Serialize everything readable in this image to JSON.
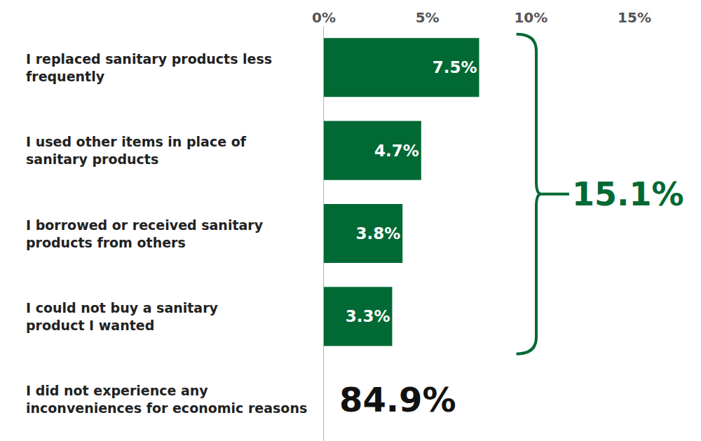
{
  "chart_data": {
    "type": "bar",
    "orientation": "horizontal",
    "categories": [
      "I replaced sanitary products less\nfrequently",
      "I used other items in place of\nsanitary products",
      "I borrowed or received sanitary\nproducts from others",
      "I could not buy a sanitary\nproduct I wanted",
      "I did not experience any\ninconveniences for economic reasons"
    ],
    "values": [
      7.5,
      4.7,
      3.8,
      3.3,
      null
    ],
    "value_labels": [
      "7.5%",
      "4.7%",
      "3.8%",
      "3.3%",
      null
    ],
    "data_labels": true,
    "color": "#006934",
    "xlim": [
      0,
      15
    ],
    "xticks": [
      {
        "value": 0,
        "label": "0%"
      },
      {
        "value": 5,
        "label": "5%"
      },
      {
        "value": 10,
        "label": "10%"
      },
      {
        "value": 15,
        "label": "15%"
      }
    ],
    "grid": false,
    "annotations": [
      {
        "text": "15.1%",
        "categories": [
          "I replaced sanitary products less\nfrequently",
          "I used other items in place of\nsanitary products",
          "I borrowed or received sanitary\nproducts from others",
          "I could not buy a sanitary\nproduct I wanted"
        ]
      },
      {
        "text": "84.9%",
        "category": "I did not experience any\ninconveniences for economic reasons"
      }
    ]
  }
}
